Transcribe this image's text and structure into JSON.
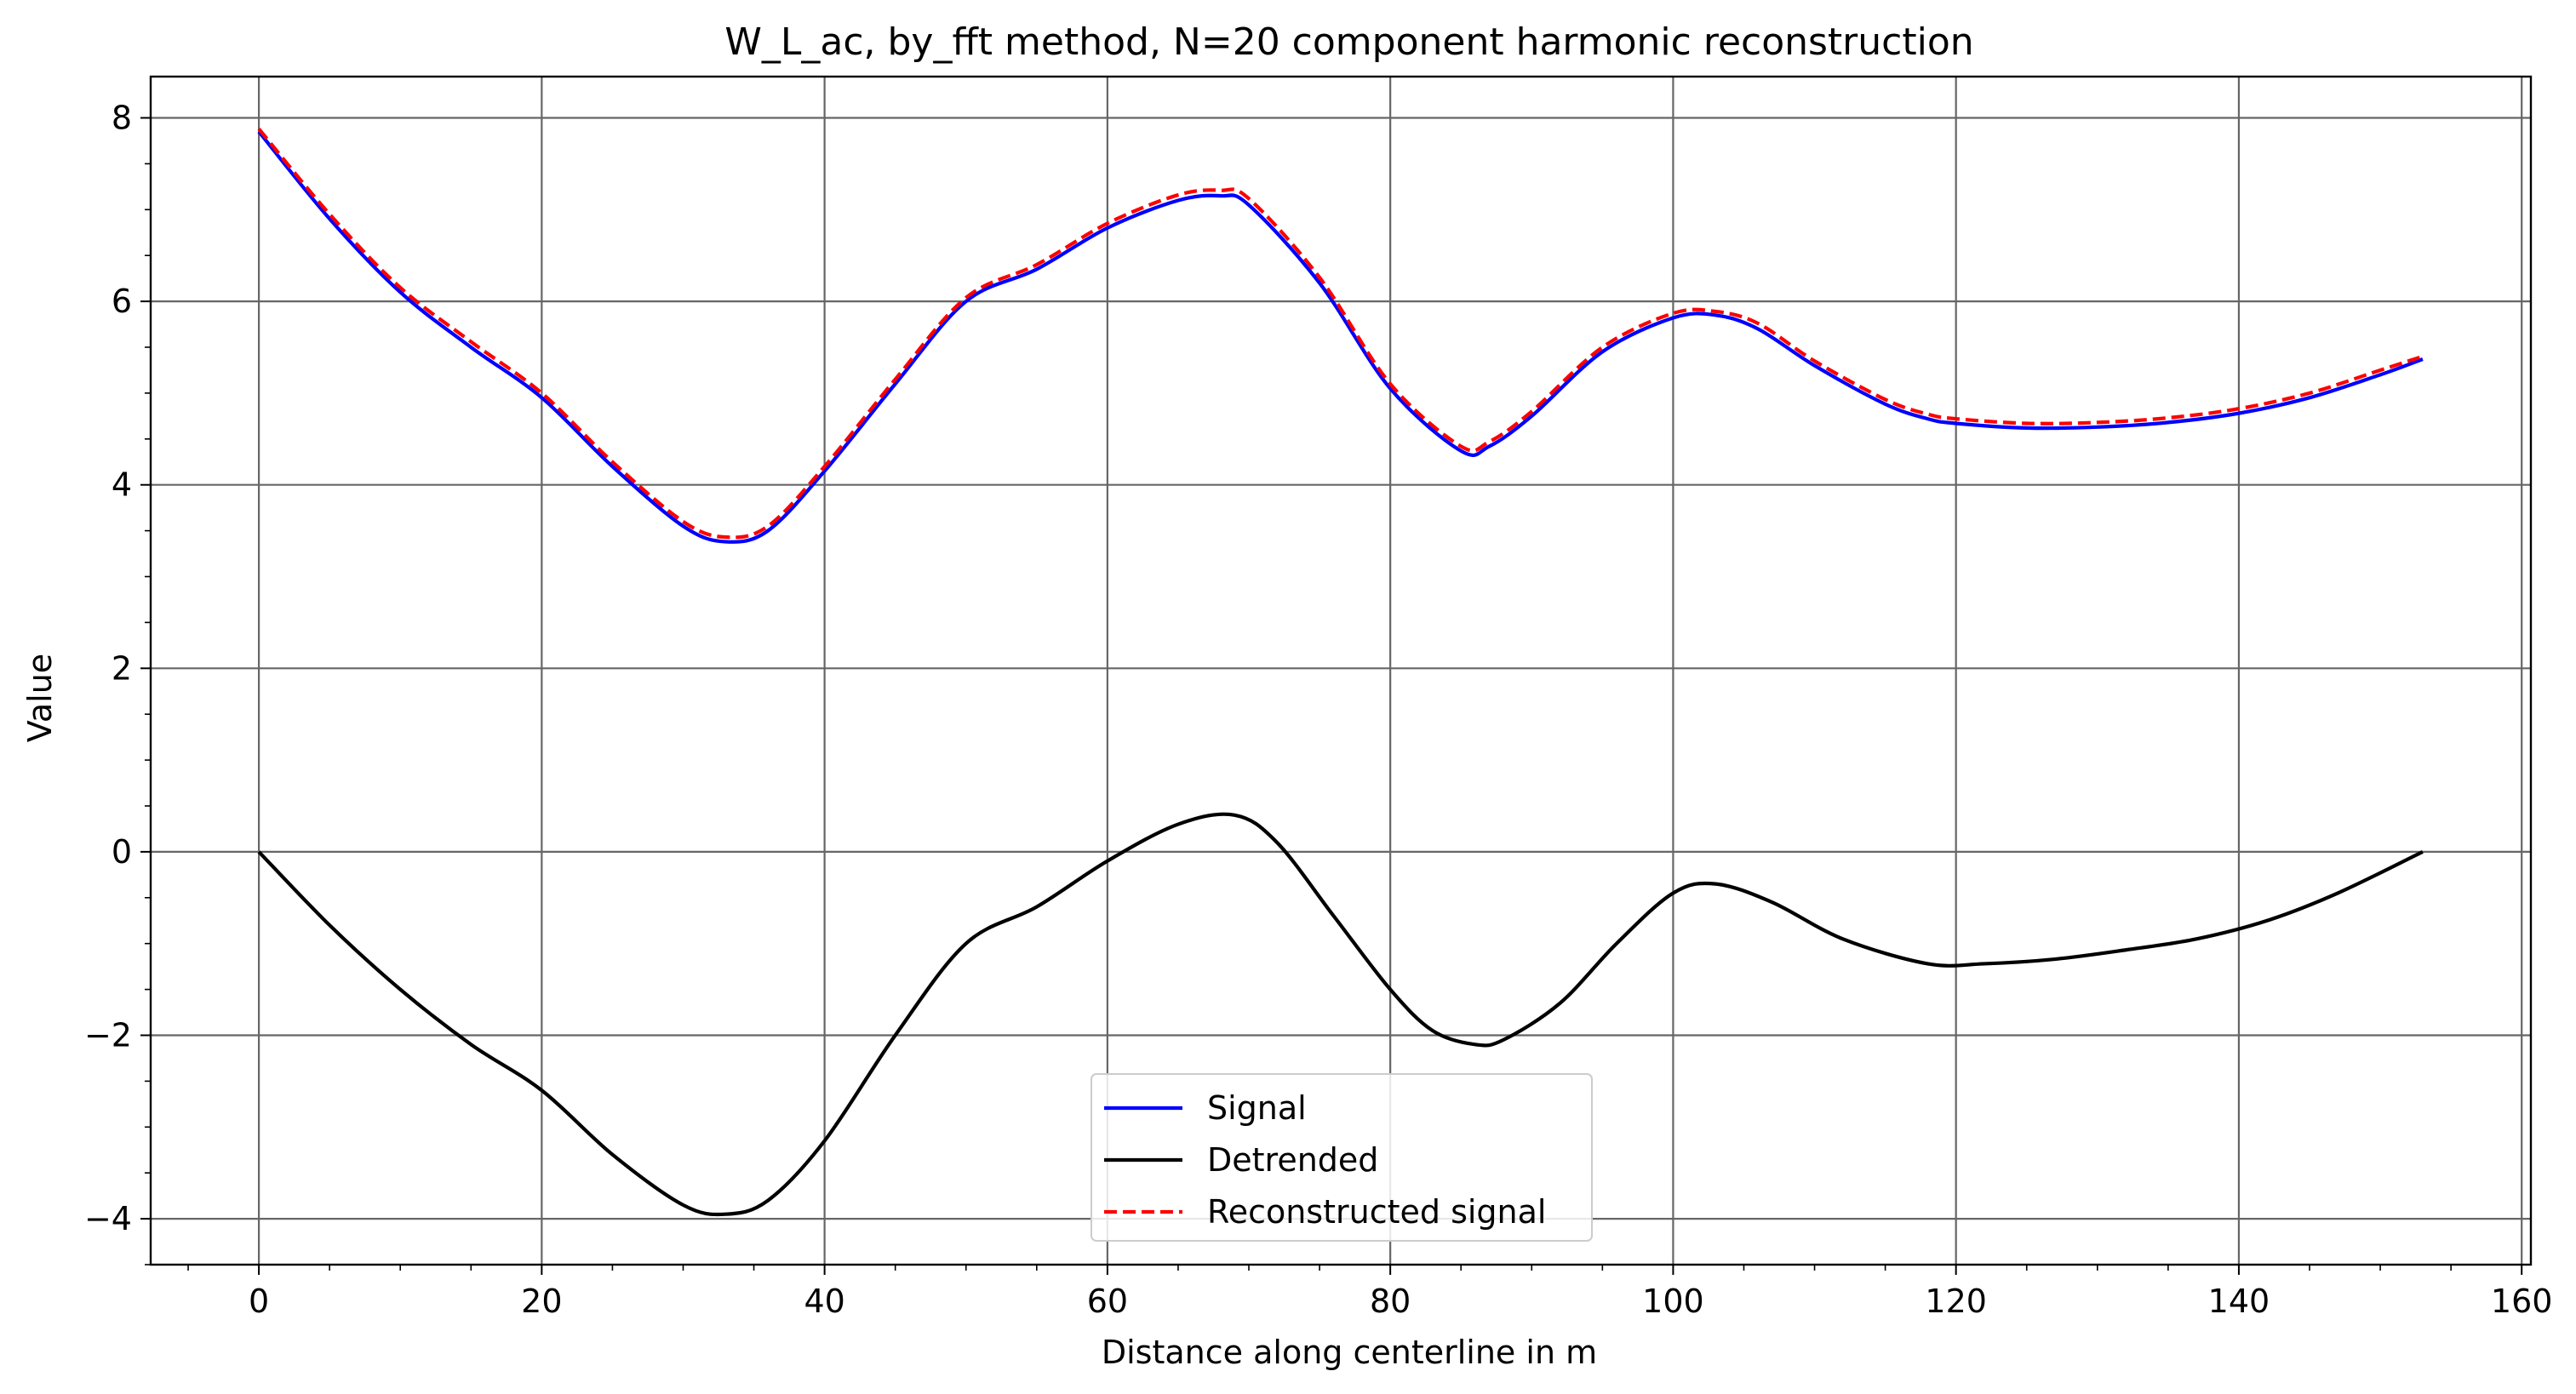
{
  "chart_data": {
    "type": "line",
    "title": "W_L_ac, by_fft method, N=20 component harmonic reconstruction",
    "xlabel": "Distance along centerline in m",
    "ylabel": "Value",
    "xlim": [
      -7.65,
      160.65
    ],
    "ylim": [
      -4.5,
      8.45
    ],
    "x_ticks": [
      0,
      20,
      40,
      60,
      80,
      100,
      120,
      140,
      160
    ],
    "y_ticks": [
      -4,
      -2,
      0,
      2,
      4,
      6,
      8
    ],
    "x_tick_labels": [
      "0",
      "20",
      "40",
      "60",
      "80",
      "100",
      "120",
      "140",
      "160"
    ],
    "y_tick_labels": [
      "−4",
      "−2",
      "0",
      "2",
      "4",
      "6",
      "8"
    ],
    "x_minor_step": 5,
    "y_minor_step": 0.5,
    "grid": true,
    "legend_position": "bottom-center",
    "series": [
      {
        "name": "Signal",
        "color": "#0000ff",
        "style": "solid",
        "x": [
          0,
          5,
          10,
          15,
          20,
          25,
          30,
          33,
          36,
          40,
          45,
          50,
          55,
          60,
          65,
          68,
          70,
          75,
          80,
          85,
          87,
          90,
          95,
          100,
          103,
          106,
          110,
          115,
          118,
          120,
          125,
          130,
          135,
          140,
          145,
          150,
          153
        ],
        "y": [
          7.85,
          6.9,
          6.1,
          5.5,
          4.95,
          4.2,
          3.55,
          3.38,
          3.5,
          4.15,
          5.1,
          6.0,
          6.35,
          6.8,
          7.1,
          7.15,
          7.05,
          6.2,
          5.05,
          4.37,
          4.42,
          4.75,
          5.45,
          5.82,
          5.85,
          5.7,
          5.3,
          4.88,
          4.72,
          4.67,
          4.62,
          4.63,
          4.68,
          4.78,
          4.95,
          5.2,
          5.37
        ]
      },
      {
        "name": "Detrended",
        "color": "#000000",
        "style": "solid",
        "x": [
          0,
          5,
          10,
          15,
          20,
          25,
          30,
          33,
          36,
          40,
          45,
          50,
          55,
          60,
          65,
          69,
          72,
          76,
          80,
          83,
          86,
          88,
          92,
          96,
          100,
          103,
          107,
          112,
          118,
          122,
          127,
          132,
          137,
          142,
          147,
          153
        ],
        "y": [
          0.0,
          -0.8,
          -1.5,
          -2.1,
          -2.6,
          -3.3,
          -3.85,
          -3.95,
          -3.8,
          -3.15,
          -2.0,
          -1.0,
          -0.6,
          -0.1,
          0.3,
          0.4,
          0.1,
          -0.7,
          -1.5,
          -1.95,
          -2.1,
          -2.05,
          -1.65,
          -1.0,
          -0.45,
          -0.35,
          -0.55,
          -0.95,
          -1.22,
          -1.22,
          -1.17,
          -1.07,
          -0.95,
          -0.75,
          -0.45,
          0.0
        ]
      },
      {
        "name": "Reconstructed signal",
        "color": "#ff0000",
        "style": "dashed",
        "x": [
          0,
          5,
          10,
          15,
          20,
          25,
          30,
          33,
          36,
          40,
          45,
          50,
          55,
          60,
          65,
          68,
          70,
          75,
          80,
          85,
          87,
          90,
          95,
          100,
          103,
          106,
          110,
          115,
          118,
          120,
          125,
          130,
          135,
          140,
          145,
          150,
          153
        ],
        "y": [
          7.88,
          6.95,
          6.15,
          5.56,
          5.0,
          4.25,
          3.6,
          3.43,
          3.55,
          4.2,
          5.15,
          6.04,
          6.4,
          6.85,
          7.16,
          7.21,
          7.12,
          6.26,
          5.1,
          4.42,
          4.47,
          4.8,
          5.5,
          5.87,
          5.89,
          5.76,
          5.35,
          4.93,
          4.77,
          4.72,
          4.67,
          4.68,
          4.73,
          4.83,
          5.0,
          5.25,
          5.4
        ]
      }
    ]
  }
}
